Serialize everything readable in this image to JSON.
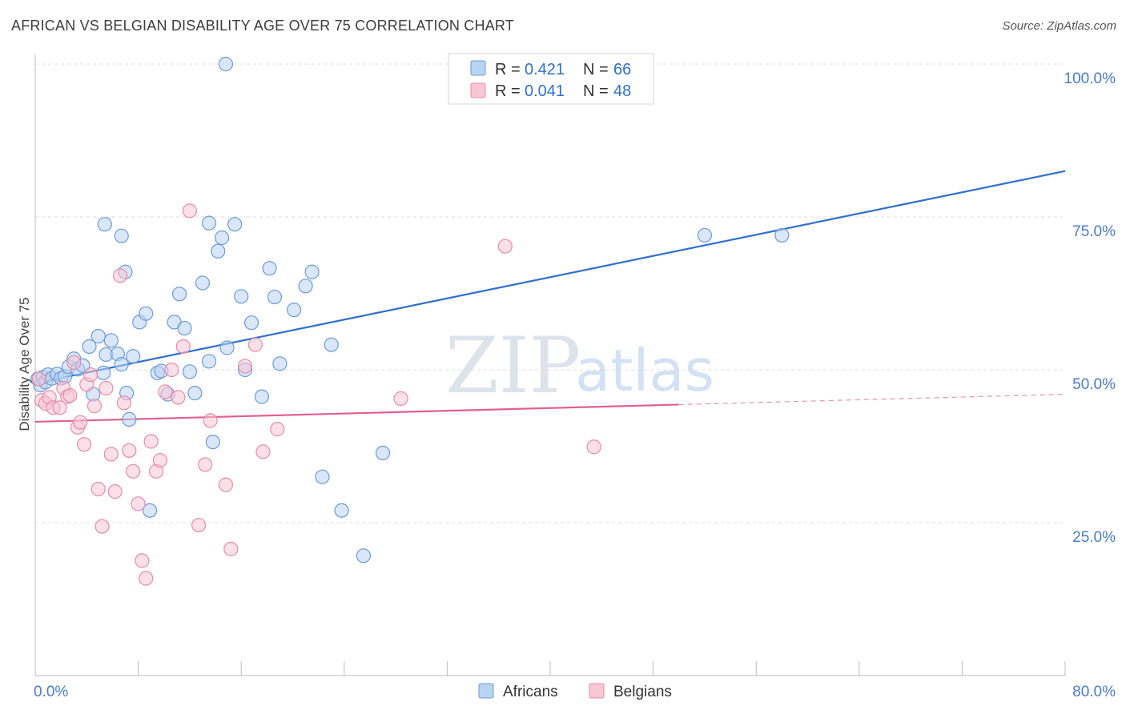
{
  "header": {
    "title": "AFRICAN VS BELGIAN DISABILITY AGE OVER 75 CORRELATION CHART",
    "source": "Source: ZipAtlas.com"
  },
  "watermark": {
    "zip": "ZIP",
    "atlas": "atlas"
  },
  "colors": {
    "africans_fill": "#b9d3f2",
    "africans_stroke": "#6a9bdc",
    "africans_line": "#2f6fcf",
    "belgians_fill": "#f8c7d6",
    "belgians_stroke": "#e88aa9",
    "belgians_line": "#e0608f"
  },
  "legend": {
    "r_label": "R =",
    "n_label": "N =",
    "africans": {
      "r": "0.421",
      "n": "66"
    },
    "belgians": {
      "r": "0.041",
      "n": "48"
    }
  },
  "bottom_legend": {
    "africans": "Africans",
    "belgians": "Belgians"
  },
  "chart_data": {
    "type": "scatter",
    "ylabel": "Disability Age Over 75",
    "xlim": [
      0,
      80
    ],
    "ylim": [
      0,
      100
    ],
    "x_ticks": [
      {
        "value": 0,
        "label": "0.0%"
      },
      {
        "value": 80,
        "label": "80.0%"
      }
    ],
    "x_minor_ticks": [
      0,
      8,
      16,
      24,
      32,
      40,
      48,
      56,
      64,
      72,
      80
    ],
    "y_ticks": [
      {
        "value": 25,
        "label": "25.0%"
      },
      {
        "value": 50,
        "label": "50.0%"
      },
      {
        "value": 75,
        "label": "75.0%"
      },
      {
        "value": 100,
        "label": "100.0%"
      }
    ],
    "grid": true,
    "series": [
      {
        "name": "Africans",
        "color": "#6a9bdc",
        "trend": {
          "x0": 0,
          "y0": 47.8,
          "x1": 80,
          "y1": 82.5,
          "dashed_from": null
        },
        "points": [
          [
            0.2,
            48.5
          ],
          [
            0.4,
            47.5
          ],
          [
            0.6,
            48.8
          ],
          [
            0.8,
            48.0
          ],
          [
            1.0,
            49.2
          ],
          [
            1.3,
            48.6
          ],
          [
            1.7,
            49.3
          ],
          [
            2.0,
            48.6
          ],
          [
            2.3,
            48.9
          ],
          [
            2.6,
            50.5
          ],
          [
            3.0,
            51.8
          ],
          [
            3.3,
            50.1
          ],
          [
            3.7,
            50.7
          ],
          [
            4.2,
            53.8
          ],
          [
            4.5,
            46.0
          ],
          [
            4.9,
            55.5
          ],
          [
            5.3,
            49.5
          ],
          [
            5.5,
            52.5
          ],
          [
            5.9,
            54.8
          ],
          [
            6.4,
            52.6
          ],
          [
            6.7,
            50.9
          ],
          [
            7.1,
            46.2
          ],
          [
            7.3,
            41.9
          ],
          [
            7.6,
            52.2
          ],
          [
            8.1,
            57.8
          ],
          [
            8.6,
            59.2
          ],
          [
            8.9,
            27.0
          ],
          [
            9.5,
            49.5
          ],
          [
            9.8,
            49.8
          ],
          [
            10.3,
            46.0
          ],
          [
            10.8,
            57.8
          ],
          [
            11.2,
            62.4
          ],
          [
            11.6,
            56.8
          ],
          [
            12.0,
            49.7
          ],
          [
            12.4,
            46.2
          ],
          [
            13.0,
            64.2
          ],
          [
            13.5,
            51.4
          ],
          [
            13.8,
            38.2
          ],
          [
            14.2,
            69.4
          ],
          [
            14.5,
            71.6
          ],
          [
            14.9,
            53.6
          ],
          [
            15.5,
            73.8
          ],
          [
            16.0,
            62.0
          ],
          [
            16.3,
            50.0
          ],
          [
            16.8,
            57.7
          ],
          [
            17.6,
            45.6
          ],
          [
            18.2,
            66.6
          ],
          [
            18.6,
            61.9
          ],
          [
            19.0,
            51.0
          ],
          [
            20.1,
            59.8
          ],
          [
            21.0,
            63.7
          ],
          [
            21.5,
            66.0
          ],
          [
            22.3,
            32.5
          ],
          [
            23.0,
            54.1
          ],
          [
            23.8,
            27.0
          ],
          [
            25.5,
            19.6
          ],
          [
            27.0,
            36.4
          ],
          [
            14.8,
            100.0
          ],
          [
            13.5,
            74.0
          ],
          [
            7.0,
            66.0
          ],
          [
            6.7,
            71.9
          ],
          [
            5.4,
            73.8
          ],
          [
            33.0,
            100.0
          ],
          [
            43.0,
            100.0
          ],
          [
            52.0,
            72.0
          ],
          [
            58.0,
            72.0
          ]
        ]
      },
      {
        "name": "Belgians",
        "color": "#e88aa9",
        "trend": {
          "x0": 0,
          "y0": 41.5,
          "x1": 80,
          "y1": 46.0,
          "dashed_from": 50
        },
        "points": [
          [
            0.3,
            48.5
          ],
          [
            0.5,
            45.0
          ],
          [
            0.8,
            44.5
          ],
          [
            1.1,
            45.5
          ],
          [
            1.4,
            43.8
          ],
          [
            1.9,
            43.8
          ],
          [
            2.2,
            47.0
          ],
          [
            2.5,
            45.6
          ],
          [
            2.7,
            45.8
          ],
          [
            3.0,
            51.2
          ],
          [
            3.3,
            40.6
          ],
          [
            3.5,
            41.4
          ],
          [
            3.8,
            37.8
          ],
          [
            4.0,
            47.6
          ],
          [
            4.3,
            49.2
          ],
          [
            4.6,
            44.1
          ],
          [
            4.9,
            30.5
          ],
          [
            5.2,
            24.4
          ],
          [
            5.5,
            47.0
          ],
          [
            5.9,
            36.2
          ],
          [
            6.2,
            30.1
          ],
          [
            6.6,
            65.4
          ],
          [
            6.9,
            44.6
          ],
          [
            7.3,
            36.8
          ],
          [
            7.6,
            33.4
          ],
          [
            8.0,
            28.1
          ],
          [
            8.3,
            18.8
          ],
          [
            8.6,
            15.9
          ],
          [
            9.0,
            38.3
          ],
          [
            9.4,
            33.4
          ],
          [
            9.7,
            35.2
          ],
          [
            10.1,
            46.4
          ],
          [
            10.6,
            50.0
          ],
          [
            11.1,
            45.5
          ],
          [
            11.5,
            53.8
          ],
          [
            12.0,
            76.0
          ],
          [
            12.7,
            24.6
          ],
          [
            13.2,
            34.5
          ],
          [
            13.6,
            41.7
          ],
          [
            14.8,
            31.2
          ],
          [
            15.2,
            20.7
          ],
          [
            16.3,
            50.6
          ],
          [
            17.1,
            54.1
          ],
          [
            17.7,
            36.6
          ],
          [
            18.8,
            40.3
          ],
          [
            28.4,
            45.3
          ],
          [
            36.5,
            70.2
          ],
          [
            43.4,
            37.4
          ]
        ]
      }
    ]
  }
}
